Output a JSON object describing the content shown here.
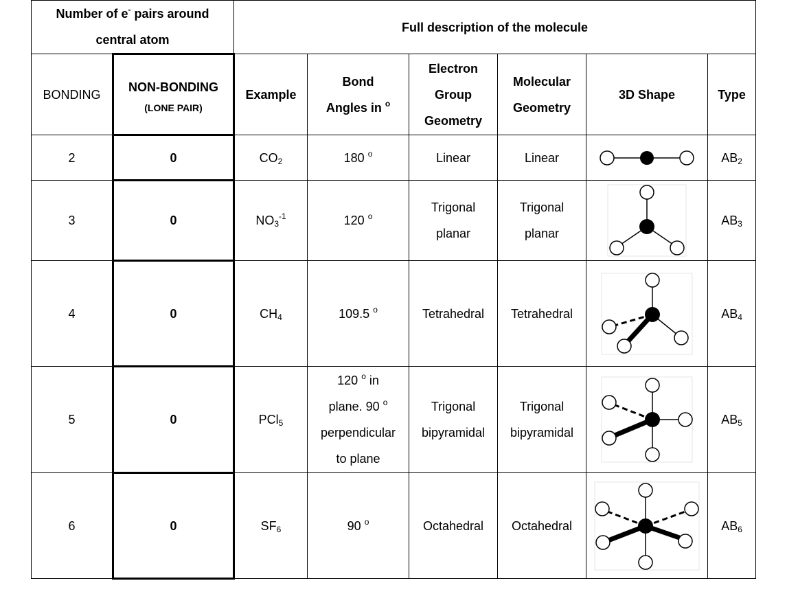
{
  "header": {
    "group_left": "Number of e",
    "group_left_sup": "-",
    "group_left_2": " pairs around",
    "group_left_3": "central atom",
    "group_right": "Full description of the molecule",
    "bonding": "BONDING",
    "nonbonding": "NON-BONDING",
    "lone_pair": "(LONE PAIR)",
    "example": "Example",
    "bond_angles_1": "Bond",
    "bond_angles_2": "Angles in",
    "degree": "o",
    "egg_1": "Electron",
    "egg_2": "Group",
    "egg_3": "Geometry",
    "mg_1": "Molecular",
    "mg_2": "Geometry",
    "shape": "3D Shape",
    "type": "Type"
  },
  "rows": [
    {
      "bonding": "2",
      "nonbonding": "0",
      "ex_base": "CO",
      "ex_sub": "2",
      "ex_sup": "",
      "angle_1": "180",
      "angle_2": "",
      "angle_3": "",
      "angle_4": "",
      "angle_deg2": "",
      "egg_1": "Linear",
      "egg_2": "",
      "mg_1": "Linear",
      "mg_2": "",
      "type_base": "AB",
      "type_sub": "2"
    },
    {
      "bonding": "3",
      "nonbonding": "0",
      "ex_base": "NO",
      "ex_sub": "3",
      "ex_sup": "-1",
      "angle_1": "120",
      "angle_2": "",
      "angle_3": "",
      "angle_4": "",
      "angle_deg2": "",
      "egg_1": "Trigonal",
      "egg_2": "planar",
      "mg_1": "Trigonal",
      "mg_2": "planar",
      "type_base": "AB",
      "type_sub": "3"
    },
    {
      "bonding": "4",
      "nonbonding": "0",
      "ex_base": "CH",
      "ex_sub": "4",
      "ex_sup": "",
      "angle_1": "109.5",
      "angle_2": "",
      "angle_3": "",
      "angle_4": "",
      "angle_deg2": "",
      "egg_1": "Tetrahedral",
      "egg_2": "",
      "mg_1": "Tetrahedral",
      "mg_2": "",
      "type_base": "AB",
      "type_sub": "4"
    },
    {
      "bonding": "5",
      "nonbonding": "0",
      "ex_base": "PCl",
      "ex_sub": "5",
      "ex_sup": "",
      "angle_1": "120",
      "angle_1_suffix": " in",
      "angle_2": "plane. 90",
      "angle_3": "perpendicular",
      "angle_4": "to plane",
      "egg_1": "Trigonal",
      "egg_2": "bipyramidal",
      "mg_1": "Trigonal",
      "mg_2": "bipyramidal",
      "type_base": "AB",
      "type_sub": "5"
    },
    {
      "bonding": "6",
      "nonbonding": "0",
      "ex_base": "SF",
      "ex_sub": "6",
      "ex_sup": "",
      "angle_1": "90",
      "angle_2": "",
      "angle_3": "",
      "angle_4": "",
      "angle_deg2": "",
      "egg_1": "Octahedral",
      "egg_2": "",
      "mg_1": "Octahedral",
      "mg_2": "",
      "type_base": "AB",
      "type_sub": "6"
    }
  ]
}
